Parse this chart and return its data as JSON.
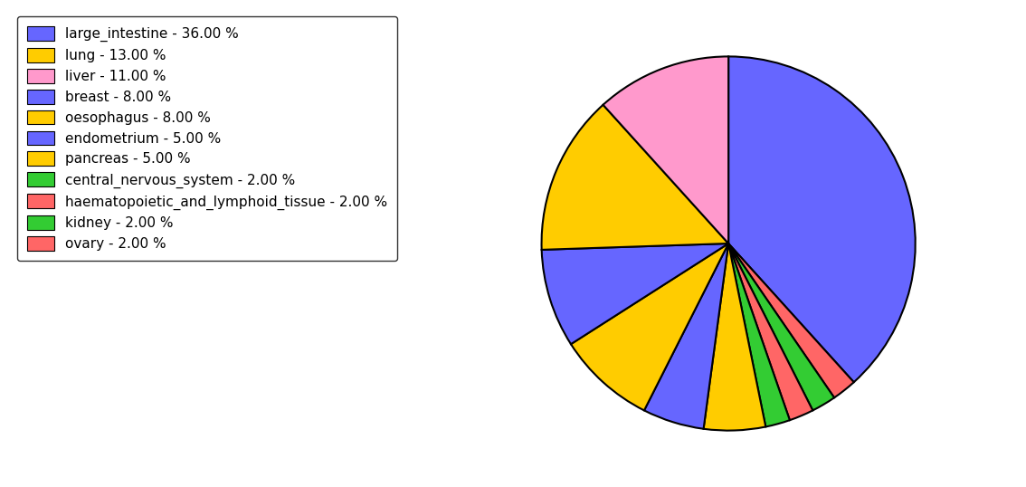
{
  "labels": [
    "large_intestine - 36.00 %",
    "lung - 13.00 %",
    "liver - 11.00 %",
    "breast - 8.00 %",
    "oesophagus - 8.00 %",
    "endometrium - 5.00 %",
    "pancreas - 5.00 %",
    "central_nervous_system - 2.00 %",
    "haematopoietic_and_lymphoid_tissue - 2.00 %",
    "kidney - 2.00 %",
    "ovary - 2.00 %"
  ],
  "pie_order_labels": [
    "large_intestine",
    "ovary",
    "kidney",
    "haematopoietic_and_lymphoid_tissue",
    "central_nervous_system",
    "pancreas",
    "endometrium",
    "oesophagus",
    "breast",
    "lung",
    "liver"
  ],
  "pie_values": [
    36,
    2,
    2,
    2,
    2,
    5,
    5,
    8,
    8,
    13,
    11
  ],
  "pie_colors": [
    "#6666ff",
    "#ff6666",
    "#33cc33",
    "#ff6666",
    "#33cc33",
    "#ffcc00",
    "#6666ff",
    "#ffcc00",
    "#6666ff",
    "#ffcc00",
    "#ff99cc"
  ],
  "legend_labels": [
    "large_intestine - 36.00 %",
    "lung - 13.00 %",
    "liver - 11.00 %",
    "breast - 8.00 %",
    "oesophagus - 8.00 %",
    "endometrium - 5.00 %",
    "pancreas - 5.00 %",
    "central_nervous_system - 2.00 %",
    "haematopoietic_and_lymphoid_tissue - 2.00 %",
    "kidney - 2.00 %",
    "ovary - 2.00 %"
  ],
  "legend_colors": [
    "#6666ff",
    "#ffcc00",
    "#ff99cc",
    "#6666ff",
    "#ffcc00",
    "#6666ff",
    "#ffcc00",
    "#33cc33",
    "#ff6666",
    "#33cc33",
    "#ff6666"
  ],
  "startangle": 90,
  "figsize": [
    11.34,
    5.38
  ],
  "dpi": 100
}
